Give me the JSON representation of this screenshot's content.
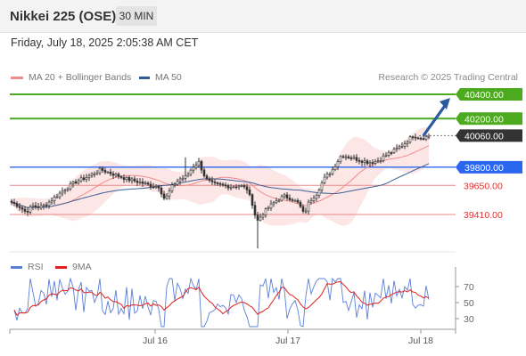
{
  "header": {
    "title": "Nikkei 225 (OSE)",
    "interval": "30 MIN"
  },
  "datetime": "Friday, July 18, 2025 2:05:38 AM CET",
  "legend": {
    "ma20": "MA 20 + Bollinger Bands",
    "ma50": "MA 50",
    "ma20_color": "#f28b8b",
    "ma50_color": "#2f5d9a"
  },
  "credit": "Research © 2025 Trading Central",
  "rsi_legend": {
    "rsi": "RSI",
    "ma9": "9MA",
    "rsi_color": "#5b7fd6",
    "ma9_color": "#e02020"
  },
  "chart_data": [
    {
      "type": "candlestick",
      "title": "",
      "ylim": [
        39000,
        40550
      ],
      "price_axis_labels": [
        {
          "value": 40400,
          "label": "40400.00",
          "style": "resistance",
          "color": "#4caa1e"
        },
        {
          "value": 40200,
          "label": "40200.00",
          "style": "resistance",
          "color": "#4caa1e"
        },
        {
          "value": 40060,
          "label": "40060.00",
          "style": "last-price",
          "color": "#333333"
        },
        {
          "value": 39800,
          "label": "39800.00",
          "style": "pivot",
          "color": "#2a66f0"
        },
        {
          "value": 39650,
          "label": "39650.00",
          "style": "support",
          "color": "#e03030"
        },
        {
          "value": 39410,
          "label": "39410.00",
          "style": "support",
          "color": "#e03030"
        }
      ],
      "x_tick_labels": [
        "Jul 16",
        "Jul 17",
        "Jul 18"
      ],
      "series": [
        {
          "name": "MA 20 + Bollinger Bands"
        },
        {
          "name": "MA 50"
        }
      ],
      "forecast_arrow": {
        "from": 40060,
        "to": 40400
      }
    },
    {
      "type": "line",
      "title": "",
      "ylim": [
        15,
        85
      ],
      "y_tick_labels": [
        70,
        50,
        30
      ],
      "series": [
        {
          "name": "RSI"
        },
        {
          "name": "9MA"
        }
      ]
    }
  ]
}
